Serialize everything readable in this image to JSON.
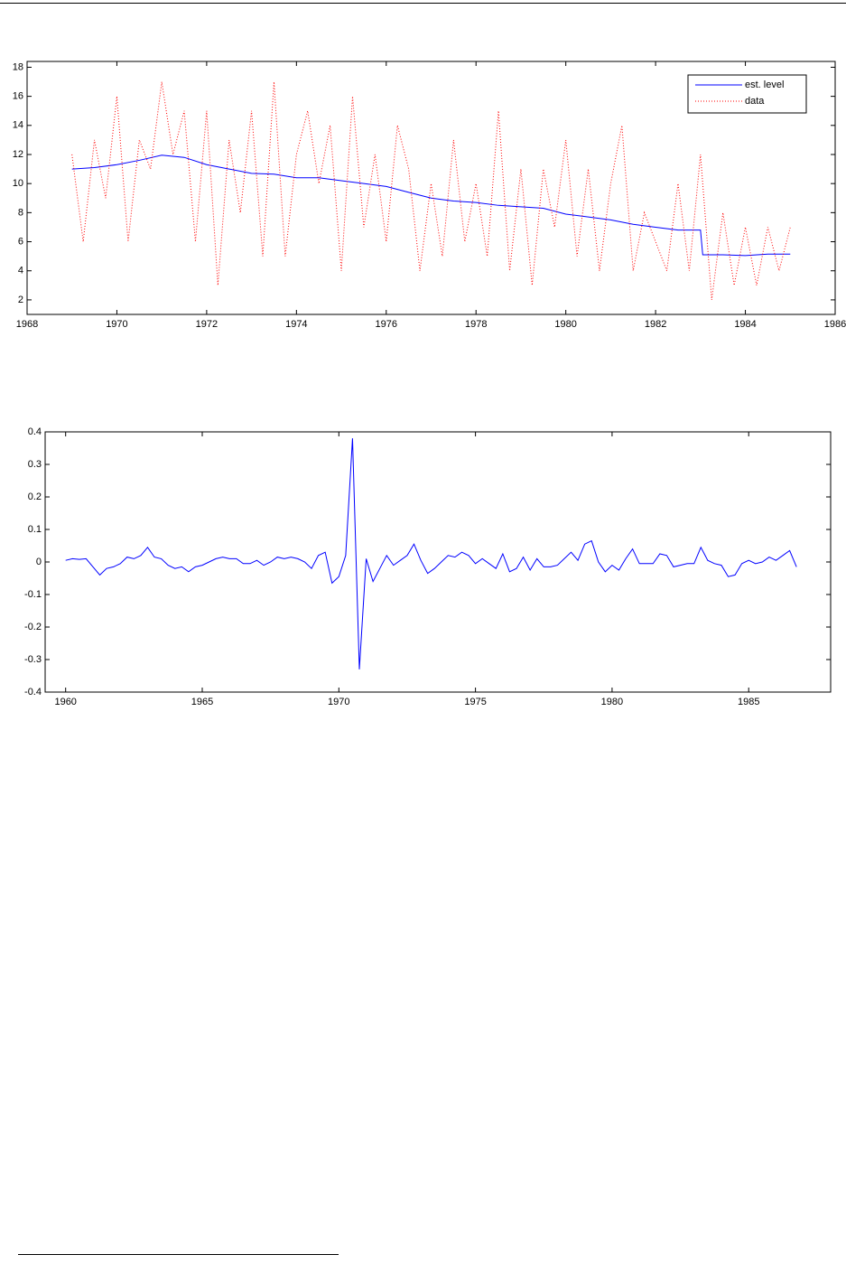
{
  "chart_data": [
    {
      "type": "line",
      "xlim": [
        1968,
        1986
      ],
      "xticks": [
        1968,
        1970,
        1972,
        1974,
        1976,
        1978,
        1980,
        1982,
        1984,
        1986
      ],
      "ylim": [
        1,
        18.4
      ],
      "yticks": [
        2,
        4,
        6,
        8,
        10,
        12,
        14,
        16,
        18
      ],
      "legend": "upper right",
      "series": [
        {
          "name": "est. level",
          "color": "#0000ff",
          "style": "solid",
          "x": [
            1969,
            1969.5,
            1970,
            1970.5,
            1971,
            1971.5,
            1972,
            1972.5,
            1973,
            1973.5,
            1974,
            1974.5,
            1975,
            1975.5,
            1976,
            1976.5,
            1977,
            1977.5,
            1978,
            1978.5,
            1979,
            1979.5,
            1980,
            1980.5,
            1981,
            1981.5,
            1982,
            1982.5,
            1983,
            1983.05,
            1983.5,
            1984,
            1984.5,
            1985
          ],
          "values": [
            11,
            11.1,
            11.3,
            11.6,
            11.95,
            11.8,
            11.3,
            11.0,
            10.7,
            10.65,
            10.4,
            10.4,
            10.2,
            10.0,
            9.8,
            9.4,
            9.0,
            8.8,
            8.7,
            8.5,
            8.4,
            8.3,
            7.9,
            7.7,
            7.5,
            7.2,
            7.0,
            6.8,
            6.8,
            5.1,
            5.1,
            5.05,
            5.15,
            5.15
          ]
        },
        {
          "name": "data",
          "color": "#ff0000",
          "style": "dotted",
          "x": [
            1969,
            1969.25,
            1969.5,
            1969.75,
            1970,
            1970.25,
            1970.5,
            1970.75,
            1971,
            1971.25,
            1971.5,
            1971.75,
            1972,
            1972.25,
            1972.5,
            1972.75,
            1973,
            1973.25,
            1973.5,
            1973.75,
            1974,
            1974.25,
            1974.5,
            1974.75,
            1975,
            1975.25,
            1975.5,
            1975.75,
            1976,
            1976.25,
            1976.5,
            1976.75,
            1977,
            1977.25,
            1977.5,
            1977.75,
            1978,
            1978.25,
            1978.5,
            1978.75,
            1979,
            1979.25,
            1979.5,
            1979.75,
            1980,
            1980.25,
            1980.5,
            1980.75,
            1981,
            1981.25,
            1981.5,
            1981.75,
            1982,
            1982.25,
            1982.5,
            1982.75,
            1983,
            1983.25,
            1983.5,
            1983.75,
            1984,
            1984.25,
            1984.5,
            1984.75,
            1985
          ],
          "values": [
            12,
            6,
            13,
            9,
            16,
            6,
            13,
            11,
            17,
            12,
            15,
            6,
            15,
            3,
            13,
            8,
            15,
            5,
            17,
            5,
            12,
            15,
            10,
            14,
            4,
            16,
            7,
            12,
            6,
            14,
            11,
            4,
            10,
            5,
            13,
            6,
            10,
            5,
            15,
            4,
            11,
            3,
            11,
            7,
            13,
            5,
            11,
            4,
            10,
            14,
            4,
            8,
            6,
            4,
            10,
            4,
            12,
            2,
            8,
            3,
            7,
            3,
            7,
            4,
            7
          ]
        }
      ]
    },
    {
      "type": "line",
      "xlim": [
        1959.25,
        1988
      ],
      "xticks": [
        1960,
        1965,
        1970,
        1975,
        1980,
        1985
      ],
      "ylim": [
        -0.4,
        0.4
      ],
      "yticks": [
        -0.4,
        -0.3,
        -0.2,
        -0.1,
        0,
        0.1,
        0.2,
        0.3,
        0.4
      ],
      "series": [
        {
          "color": "#0000ff",
          "style": "solid",
          "x": [
            1960,
            1960.25,
            1960.5,
            1960.75,
            1961,
            1961.25,
            1961.5,
            1961.75,
            1962,
            1962.25,
            1962.5,
            1962.75,
            1963,
            1963.25,
            1963.5,
            1963.75,
            1964,
            1964.25,
            1964.5,
            1964.75,
            1965,
            1965.25,
            1965.5,
            1965.75,
            1966,
            1966.25,
            1966.5,
            1966.75,
            1967,
            1967.25,
            1967.5,
            1967.75,
            1968,
            1968.25,
            1968.5,
            1968.75,
            1969,
            1969.25,
            1969.5,
            1969.75,
            1970,
            1970.25,
            1970.5,
            1970.75,
            1971,
            1971.25,
            1971.5,
            1971.75,
            1972,
            1972.25,
            1972.5,
            1972.75,
            1973,
            1973.25,
            1973.5,
            1973.75,
            1974,
            1974.25,
            1974.5,
            1974.75,
            1975,
            1975.25,
            1975.5,
            1975.75,
            1976,
            1976.25,
            1976.5,
            1976.75,
            1977,
            1977.25,
            1977.5,
            1977.75,
            1978,
            1978.25,
            1978.5,
            1978.75,
            1979,
            1979.25,
            1979.5,
            1979.75,
            1980,
            1980.25,
            1980.5,
            1980.75,
            1981,
            1981.25,
            1981.5,
            1981.75,
            1982,
            1982.25,
            1982.5,
            1982.75,
            1983,
            1983.25,
            1983.5,
            1983.75,
            1984,
            1984.25,
            1984.5,
            1984.75,
            1985,
            1985.25,
            1985.5,
            1985.75,
            1986,
            1986.25,
            1986.5,
            1986.75
          ],
          "values": [
            0.005,
            0.01,
            0.008,
            0.01,
            -0.015,
            -0.04,
            -0.02,
            -0.015,
            -0.005,
            0.015,
            0.01,
            0.02,
            0.045,
            0.015,
            0.01,
            -0.01,
            -0.02,
            -0.015,
            -0.03,
            -0.015,
            -0.01,
            0.0,
            0.01,
            0.015,
            0.01,
            0.01,
            -0.005,
            -0.005,
            0.005,
            -0.01,
            0.0,
            0.015,
            0.01,
            0.015,
            0.01,
            0.0,
            -0.02,
            0.02,
            0.03,
            -0.065,
            -0.045,
            0.02,
            0.38,
            -0.33,
            0.01,
            -0.06,
            -0.02,
            0.02,
            -0.01,
            0.005,
            0.02,
            0.055,
            0.005,
            -0.035,
            -0.02,
            0.0,
            0.02,
            0.015,
            0.03,
            0.02,
            -0.005,
            0.01,
            -0.005,
            -0.02,
            0.025,
            -0.03,
            -0.02,
            0.015,
            -0.025,
            0.01,
            -0.015,
            -0.015,
            -0.01,
            0.01,
            0.03,
            0.005,
            0.055,
            0.065,
            0.0,
            -0.03,
            -0.01,
            -0.025,
            0.01,
            0.04,
            -0.005,
            -0.005,
            -0.005,
            0.025,
            0.02,
            -0.015,
            -0.01,
            -0.005,
            -0.005,
            0.045,
            0.005,
            -0.005,
            -0.01,
            -0.045,
            -0.04,
            -0.005,
            0.005,
            -0.005,
            0.0,
            0.015,
            0.005,
            0.02,
            0.035,
            -0.015
          ]
        }
      ]
    }
  ]
}
